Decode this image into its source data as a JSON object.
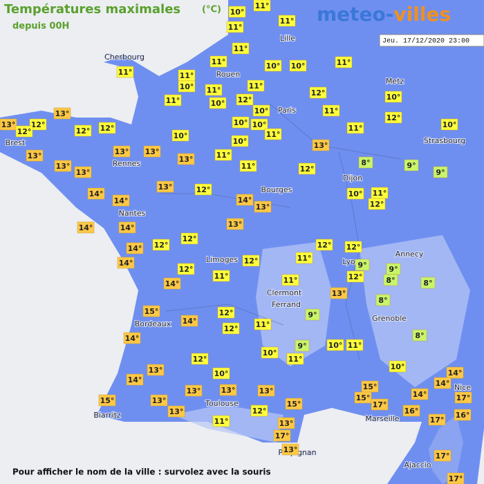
{
  "header": {
    "title": "Températures maximales",
    "unit": "(°C)",
    "subtitle": "depuis 00H",
    "logo_left": "meteo-",
    "logo_right": "villes",
    "date": "Jeu. 17/12/2020 23:00"
  },
  "cities": [
    "Cherbourg",
    "Rouen",
    "Lille",
    "Paris",
    "Metz",
    "Strasbourg",
    "Brest",
    "Rennes",
    "Dijon",
    "Bourges",
    "Nantes",
    "Annecy",
    "Lyon",
    "Limoges",
    "Clermont",
    "Ferrand",
    "Grenoble",
    "Bordeaux",
    "Nice",
    "Toulouse",
    "Marseille",
    "Biarritz",
    "Perpignan",
    "Ajaccio"
  ],
  "temperatures": [
    {
      "value": 10,
      "label": "10°"
    },
    {
      "value": 11,
      "label": "11°"
    },
    {
      "value": 11,
      "label": "11°"
    },
    {
      "value": 11,
      "label": "11°"
    },
    {
      "value": 11,
      "label": "11°"
    },
    {
      "value": 10,
      "label": "10°"
    },
    {
      "value": 10,
      "label": "10°"
    },
    {
      "value": 11,
      "label": "11°"
    },
    {
      "value": 11,
      "label": "11°"
    },
    {
      "value": 11,
      "label": "11°"
    },
    {
      "value": 10,
      "label": "10°"
    },
    {
      "value": 11,
      "label": "11°"
    },
    {
      "value": 11,
      "label": "11°"
    },
    {
      "value": 12,
      "label": "12°"
    },
    {
      "value": 10,
      "label": "10°"
    },
    {
      "value": 11,
      "label": "11°"
    },
    {
      "value": 11,
      "label": "11°"
    },
    {
      "value": 12,
      "label": "12°"
    },
    {
      "value": 10,
      "label": "10°"
    },
    {
      "value": 11,
      "label": "11°"
    },
    {
      "value": 10,
      "label": "10°"
    },
    {
      "value": 12,
      "label": "12°"
    },
    {
      "value": 10,
      "label": "10°"
    },
    {
      "value": 13,
      "label": "13°"
    },
    {
      "value": 13,
      "label": "13°"
    },
    {
      "value": 12,
      "label": "12°"
    },
    {
      "value": 12,
      "label": "12°"
    },
    {
      "value": 12,
      "label": "12°"
    },
    {
      "value": 12,
      "label": "12°"
    },
    {
      "value": 10,
      "label": "10°"
    },
    {
      "value": 10,
      "label": "10°"
    },
    {
      "value": 11,
      "label": "11°"
    },
    {
      "value": 10,
      "label": "10°"
    },
    {
      "value": 11,
      "label": "11°"
    },
    {
      "value": 10,
      "label": "10°"
    },
    {
      "value": 13,
      "label": "13°"
    },
    {
      "value": 13,
      "label": "13°"
    },
    {
      "value": 13,
      "label": "13°"
    },
    {
      "value": 13,
      "label": "13°"
    },
    {
      "value": 11,
      "label": "11°"
    },
    {
      "value": 13,
      "label": "13°"
    },
    {
      "value": 8,
      "label": "8°"
    },
    {
      "value": 9,
      "label": "9°"
    },
    {
      "value": 9,
      "label": "9°"
    },
    {
      "value": 13,
      "label": "13°"
    },
    {
      "value": 13,
      "label": "13°"
    },
    {
      "value": 11,
      "label": "11°"
    },
    {
      "value": 12,
      "label": "12°"
    },
    {
      "value": 13,
      "label": "13°"
    },
    {
      "value": 12,
      "label": "12°"
    },
    {
      "value": 14,
      "label": "14°"
    },
    {
      "value": 14,
      "label": "14°"
    },
    {
      "value": 14,
      "label": "14°"
    },
    {
      "value": 13,
      "label": "13°"
    },
    {
      "value": 10,
      "label": "10°"
    },
    {
      "value": 11,
      "label": "11°"
    },
    {
      "value": 12,
      "label": "12°"
    },
    {
      "value": 14,
      "label": "14°"
    },
    {
      "value": 14,
      "label": "14°"
    },
    {
      "value": 13,
      "label": "13°"
    },
    {
      "value": 12,
      "label": "12°"
    },
    {
      "value": 12,
      "label": "12°"
    },
    {
      "value": 14,
      "label": "14°"
    },
    {
      "value": 12,
      "label": "12°"
    },
    {
      "value": 12,
      "label": "12°"
    },
    {
      "value": 14,
      "label": "14°"
    },
    {
      "value": 12,
      "label": "12°"
    },
    {
      "value": 12,
      "label": "12°"
    },
    {
      "value": 11,
      "label": "11°"
    },
    {
      "value": 9,
      "label": "9°"
    },
    {
      "value": 9,
      "label": "9°"
    },
    {
      "value": 12,
      "label": "12°"
    },
    {
      "value": 8,
      "label": "8°"
    },
    {
      "value": 8,
      "label": "8°"
    },
    {
      "value": 14,
      "label": "14°"
    },
    {
      "value": 11,
      "label": "11°"
    },
    {
      "value": 11,
      "label": "11°"
    },
    {
      "value": 13,
      "label": "13°"
    },
    {
      "value": 8,
      "label": "8°"
    },
    {
      "value": 15,
      "label": "15°"
    },
    {
      "value": 12,
      "label": "12°"
    },
    {
      "value": 9,
      "label": "9°"
    },
    {
      "value": 14,
      "label": "14°"
    },
    {
      "value": 12,
      "label": "12°"
    },
    {
      "value": 11,
      "label": "11°"
    },
    {
      "value": 14,
      "label": "14°"
    },
    {
      "value": 8,
      "label": "8°"
    },
    {
      "value": 9,
      "label": "9°"
    },
    {
      "value": 10,
      "label": "10°"
    },
    {
      "value": 11,
      "label": "11°"
    },
    {
      "value": 10,
      "label": "10°"
    },
    {
      "value": 11,
      "label": "11°"
    },
    {
      "value": 12,
      "label": "12°"
    },
    {
      "value": 13,
      "label": "13°"
    },
    {
      "value": 10,
      "label": "10°"
    },
    {
      "value": 10,
      "label": "10°"
    },
    {
      "value": 14,
      "label": "14°"
    },
    {
      "value": 14,
      "label": "14°"
    },
    {
      "value": 14,
      "label": "14°"
    },
    {
      "value": 13,
      "label": "13°"
    },
    {
      "value": 13,
      "label": "13°"
    },
    {
      "value": 13,
      "label": "13°"
    },
    {
      "value": 15,
      "label": "15°"
    },
    {
      "value": 15,
      "label": "15°"
    },
    {
      "value": 17,
      "label": "17°"
    },
    {
      "value": 14,
      "label": "14°"
    },
    {
      "value": 17,
      "label": "17°"
    },
    {
      "value": 15,
      "label": "15°"
    },
    {
      "value": 13,
      "label": "13°"
    },
    {
      "value": 15,
      "label": "15°"
    },
    {
      "value": 16,
      "label": "16°"
    },
    {
      "value": 16,
      "label": "16°"
    },
    {
      "value": 13,
      "label": "13°"
    },
    {
      "value": 12,
      "label": "12°"
    },
    {
      "value": 17,
      "label": "17°"
    },
    {
      "value": 11,
      "label": "11°"
    },
    {
      "value": 13,
      "label": "13°"
    },
    {
      "value": 17,
      "label": "17°"
    },
    {
      "value": 13,
      "label": "13°"
    },
    {
      "value": 17,
      "label": "17°"
    },
    {
      "value": 17,
      "label": "17°"
    }
  ],
  "footer": "Pour afficher le nom de la ville : survolez avec la souris"
}
